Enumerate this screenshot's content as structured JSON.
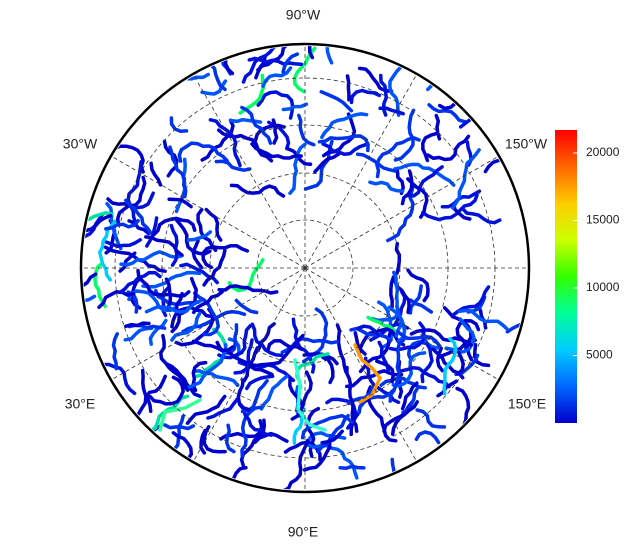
{
  "labels": {
    "top": "90°W",
    "upper_left": "30°W",
    "upper_right": "150°W",
    "lower_left": "30°E",
    "lower_right": "150°E",
    "bottom": "90°E"
  },
  "colorbar": {
    "lim": [
      0,
      21700
    ],
    "ticks": [
      5000,
      10000,
      15000,
      20000
    ],
    "colors": [
      "#0000cc",
      "#0066ff",
      "#00ccff",
      "#00ff99",
      "#33ff00",
      "#ccff00",
      "#ffcc00",
      "#ff6600",
      "#ff0000"
    ]
  }
}
